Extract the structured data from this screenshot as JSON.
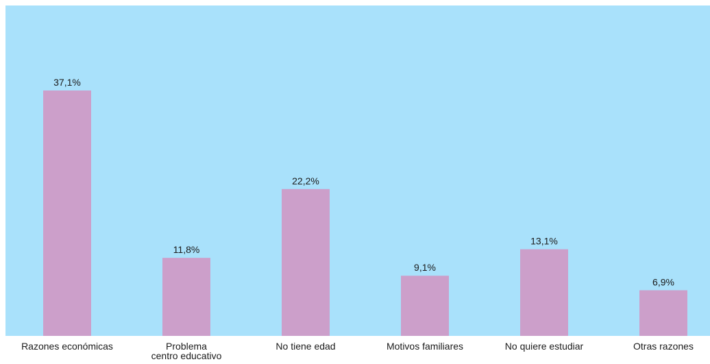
{
  "chart_data": {
    "type": "bar",
    "title": "",
    "xlabel": "",
    "ylabel": "",
    "categories": [
      "Razones económicas",
      "Problema\ncentro educativo",
      "No tiene edad",
      "Motivos familiares",
      "No quiere estudiar",
      "Otras razones"
    ],
    "values": [
      37.1,
      11.8,
      22.2,
      9.1,
      13.1,
      6.9
    ],
    "value_labels": [
      "37,1%",
      "11,8%",
      "22,2%",
      "9,1%",
      "13,1%",
      "6,9%"
    ],
    "unit": "%",
    "grid": false,
    "legend": "none",
    "colors": {
      "plot_background": "#a9e1fb",
      "bar": "#cc9fca",
      "text": "#1a1a1a"
    }
  }
}
